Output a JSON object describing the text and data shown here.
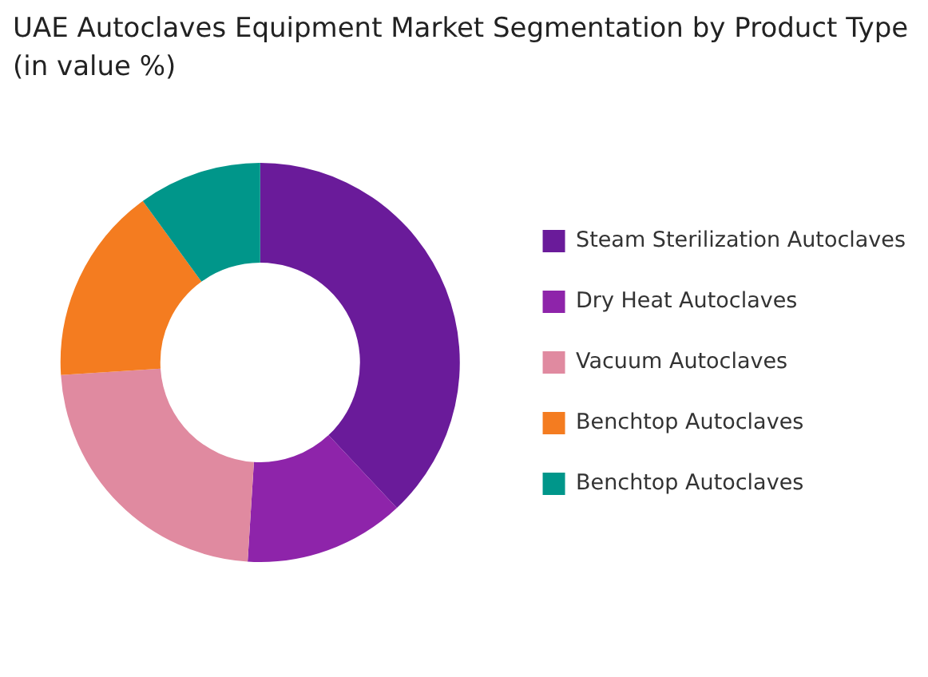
{
  "chart_data": {
    "type": "donut",
    "title": "UAE Autoclaves Equipment Market Segmentation by Product Type (in value %)",
    "categories": [
      "Steam Sterilization Autoclaves",
      "Dry Heat Autoclaves",
      "Vacuum Autoclaves",
      "Benchtop Autoclaves",
      "Benchtop Autoclaves"
    ],
    "values": [
      38,
      13,
      23,
      16,
      10
    ],
    "colors": [
      "#6a1b9a",
      "#8e24aa",
      "#e08aa0",
      "#f47c20",
      "#00968a"
    ],
    "legend": "right"
  }
}
